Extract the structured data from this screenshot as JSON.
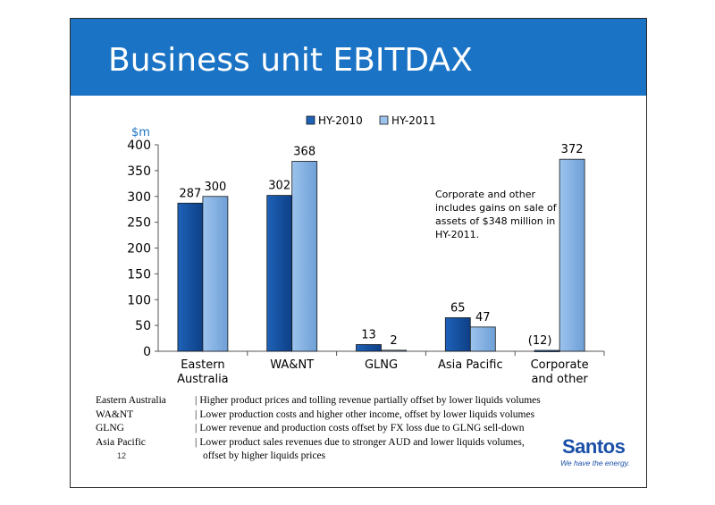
{
  "slide": {
    "title": "Business unit EBITDAX",
    "page_number": "12"
  },
  "colors": {
    "title_bar": "#1a73c4",
    "hy2010": "#1e62b8",
    "hy2011": "#9cc3ee",
    "unit_label": "#1a73c4"
  },
  "chart_data": {
    "type": "bar",
    "unit_label": "$m",
    "categories": [
      "Eastern\nAustralia",
      "WA&NT",
      "GLNG",
      "Asia Pacific",
      "Corporate\nand other"
    ],
    "series": [
      {
        "name": "HY-2010",
        "values": [
          287,
          302,
          13,
          65,
          -12
        ],
        "labels": [
          "287",
          "302",
          "13",
          "65",
          "(12)"
        ]
      },
      {
        "name": "HY-2011",
        "values": [
          300,
          368,
          2,
          47,
          372
        ],
        "labels": [
          "300",
          "368",
          "2",
          "47",
          "372"
        ]
      }
    ],
    "ylim": [
      0,
      400
    ],
    "yticks": [
      0,
      50,
      100,
      150,
      200,
      250,
      300,
      350,
      400
    ],
    "legend_position": "top",
    "grid": false,
    "annotation": "Corporate and other\nincludes gains on sale of\nassets of $348 million in\nHY-2011."
  },
  "notes": [
    {
      "region": "Eastern Australia",
      "text": "Higher product prices and tolling revenue partially offset by lower liquids volumes"
    },
    {
      "region": "WA&NT",
      "text": "Lower production costs and higher other income, offset by lower liquids volumes"
    },
    {
      "region": "GLNG",
      "text": "Lower revenue and production costs offset by FX loss due to GLNG sell-down"
    },
    {
      "region": "Asia Pacific",
      "text": "Lower product sales revenues due to stronger AUD and lower liquids volumes,\noffset by higher liquids prices"
    }
  ],
  "logo": {
    "name": "Santos",
    "tagline": "We have the energy."
  }
}
